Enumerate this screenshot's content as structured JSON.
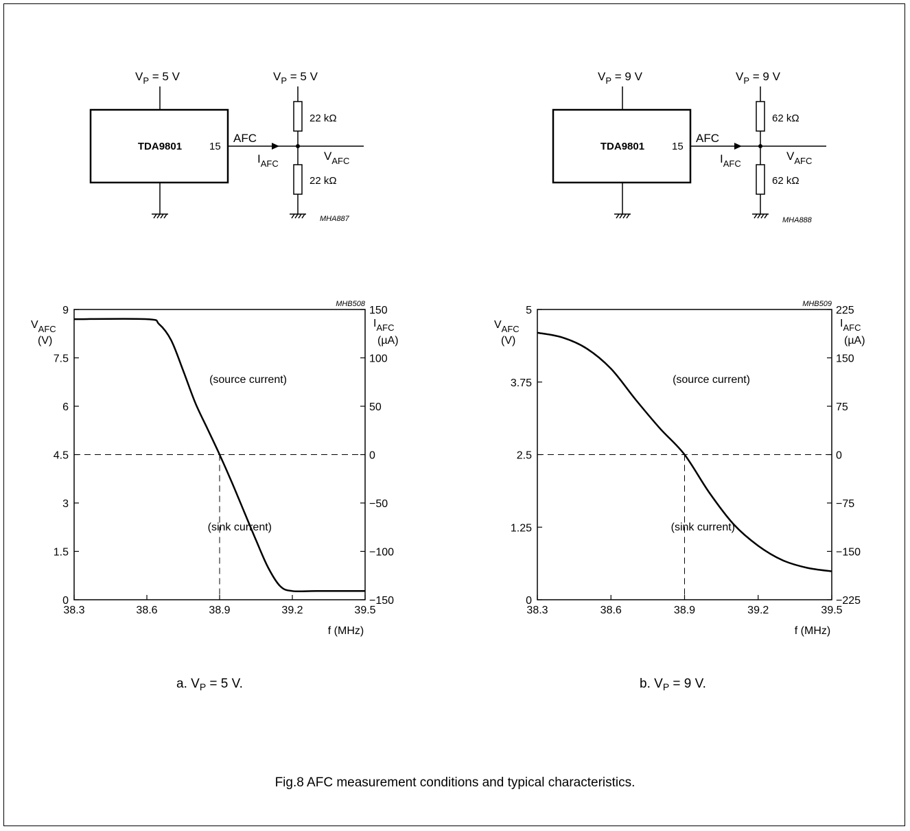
{
  "figure": {
    "caption": "Fig.8  AFC measurement conditions and typical characteristics."
  },
  "circuits": [
    {
      "ic_label": "TDA9801",
      "pin": "15",
      "supply_label": "V",
      "supply_sub": "P",
      "supply_value": " = 5 V",
      "afc_label": "AFC",
      "current_label": "I",
      "current_sub": "AFC",
      "voltage_label": "V",
      "voltage_sub": "AFC",
      "r_top": "22 kΩ",
      "r_bottom": "22 kΩ",
      "ref": "MHA887"
    },
    {
      "ic_label": "TDA9801",
      "pin": "15",
      "supply_label": "V",
      "supply_sub": "P",
      "supply_value": " = 9 V",
      "afc_label": "AFC",
      "current_label": "I",
      "current_sub": "AFC",
      "voltage_label": "V",
      "voltage_sub": "AFC",
      "r_top": "62 kΩ",
      "r_bottom": "62 kΩ",
      "ref": "MHA888"
    }
  ],
  "chart_data": [
    {
      "type": "line",
      "ref": "MHB508",
      "caption_prefix": "a.  V",
      "caption_sub": "P",
      "caption_suffix": " = 5 V.",
      "xlabel": "f (MHz)",
      "ylabel_left": "V",
      "ylabel_left_sub": "AFC",
      "ylabel_left_unit": "(V)",
      "ylabel_right": "I",
      "ylabel_right_sub": "AFC",
      "ylabel_right_unit": "(µA)",
      "xlim": [
        38.3,
        39.5
      ],
      "ylim_left": [
        0,
        9
      ],
      "ylim_right": [
        -150,
        150
      ],
      "xticks": [
        "38.3",
        "38.6",
        "38.9",
        "39.2",
        "39.5"
      ],
      "yticks_left": [
        "0",
        "1.5",
        "3",
        "4.5",
        "6",
        "7.5",
        "9"
      ],
      "yticks_right": [
        "−150",
        "−100",
        "−50",
        "0",
        "50",
        "100",
        "150"
      ],
      "reference_x": 38.9,
      "reference_y": 4.5,
      "annotations": [
        "(source current)",
        "(sink current)"
      ],
      "series": [
        {
          "x": [
            38.3,
            38.6,
            38.65,
            38.7,
            38.75,
            38.8,
            38.85,
            38.9,
            38.95,
            39.0,
            39.05,
            39.1,
            39.15,
            39.2,
            39.3,
            39.5
          ],
          "y": [
            8.7,
            8.7,
            8.55,
            8.05,
            7.1,
            6.1,
            5.3,
            4.5,
            3.65,
            2.75,
            1.85,
            1.0,
            0.42,
            0.27,
            0.27,
            0.27
          ]
        }
      ]
    },
    {
      "type": "line",
      "ref": "MHB509",
      "caption_prefix": "b.  V",
      "caption_sub": "P",
      "caption_suffix": " = 9 V.",
      "xlabel": "f (MHz)",
      "ylabel_left": "V",
      "ylabel_left_sub": "AFC",
      "ylabel_left_unit": "(V)",
      "ylabel_right": "I",
      "ylabel_right_sub": "AFC",
      "ylabel_right_unit": "(µA)",
      "xlim": [
        38.3,
        39.5
      ],
      "ylim_left": [
        0,
        5
      ],
      "ylim_right": [
        -225,
        225
      ],
      "xticks": [
        "38.3",
        "38.6",
        "38.9",
        "39.2",
        "39.5"
      ],
      "yticks_left": [
        "0",
        "1.25",
        "2.5",
        "3.75",
        "5"
      ],
      "yticks_right": [
        "−225",
        "−150",
        "−75",
        "0",
        "75",
        "150",
        "225"
      ],
      "reference_x": 38.9,
      "reference_y": 2.5,
      "annotations": [
        "(source current)",
        "(sink current)"
      ],
      "series": [
        {
          "x": [
            38.3,
            38.4,
            38.5,
            38.6,
            38.7,
            38.8,
            38.9,
            39.0,
            39.1,
            39.2,
            39.3,
            39.4,
            39.5
          ],
          "y": [
            4.6,
            4.52,
            4.33,
            3.98,
            3.45,
            2.95,
            2.5,
            1.85,
            1.3,
            0.93,
            0.68,
            0.55,
            0.49
          ]
        }
      ]
    }
  ]
}
